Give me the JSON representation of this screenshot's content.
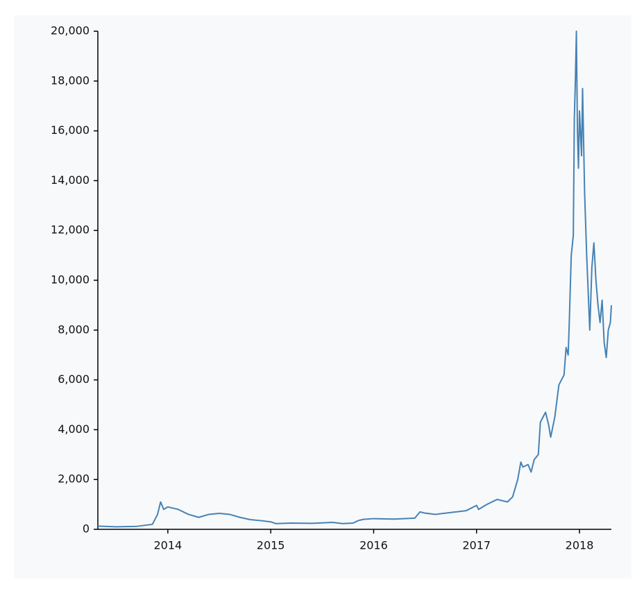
{
  "chart_data": {
    "type": "line",
    "x": [
      2013.32,
      2013.5,
      2013.7,
      2013.85,
      2013.9,
      2013.93,
      2013.96,
      2014.0,
      2014.1,
      2014.2,
      2014.3,
      2014.4,
      2014.5,
      2014.6,
      2014.7,
      2014.8,
      2014.9,
      2015.0,
      2015.05,
      2015.2,
      2015.4,
      2015.6,
      2015.7,
      2015.8,
      2015.85,
      2015.9,
      2016.0,
      2016.2,
      2016.4,
      2016.45,
      2016.5,
      2016.6,
      2016.8,
      2016.9,
      2017.0,
      2017.02,
      2017.1,
      2017.2,
      2017.3,
      2017.35,
      2017.4,
      2017.43,
      2017.45,
      2017.5,
      2017.53,
      2017.56,
      2017.6,
      2017.62,
      2017.67,
      2017.7,
      2017.72,
      2017.76,
      2017.8,
      2017.85,
      2017.87,
      2017.89,
      2017.9,
      2017.92,
      2017.94,
      2017.95,
      2017.96,
      2017.97,
      2017.98,
      2017.99,
      2018.0,
      2018.02,
      2018.03,
      2018.05,
      2018.07,
      2018.09,
      2018.1,
      2018.12,
      2018.14,
      2018.16,
      2018.18,
      2018.2,
      2018.22,
      2018.24,
      2018.26,
      2018.28,
      2018.3,
      2018.31
    ],
    "series": [
      {
        "color": "#4682b4",
        "values": [
          130,
          100,
          120,
          200,
          600,
          1100,
          800,
          900,
          800,
          600,
          480,
          600,
          640,
          600,
          480,
          390,
          350,
          300,
          230,
          250,
          240,
          280,
          230,
          250,
          350,
          400,
          430,
          410,
          450,
          700,
          650,
          600,
          700,
          750,
          960,
          800,
          1000,
          1200,
          1100,
          1300,
          2000,
          2700,
          2500,
          2600,
          2300,
          2800,
          3000,
          4300,
          4700,
          4200,
          3700,
          4500,
          5800,
          6200,
          7300,
          7000,
          8200,
          11000,
          11800,
          16500,
          18000,
          20000,
          16000,
          14500,
          16800,
          15000,
          17700,
          13500,
          11000,
          9000,
          8000,
          10500,
          11500,
          10000,
          9000,
          8300,
          9200,
          7500,
          6900,
          8000,
          8300,
          9000
        ]
      }
    ],
    "xlim": [
      2013.32,
      2018.31
    ],
    "xticks": [
      2014,
      2015,
      2016,
      2017,
      2018
    ],
    "ylim": [
      0,
      20000
    ],
    "yticks": [
      0,
      {
        "value": 2000,
        "label": "2,000"
      },
      {
        "value": 4000,
        "label": "4,000"
      },
      {
        "value": 6000,
        "label": "6,000"
      },
      {
        "value": 8000,
        "label": "8,000"
      },
      {
        "value": 10000,
        "label": "10,000"
      },
      {
        "value": 12000,
        "label": "12,000"
      },
      {
        "value": 14000,
        "label": "14,000"
      },
      {
        "value": 16000,
        "label": "16,000"
      },
      {
        "value": 18000,
        "label": "18,000"
      },
      {
        "value": 20000,
        "label": "20,000"
      }
    ],
    "grid": false
  }
}
